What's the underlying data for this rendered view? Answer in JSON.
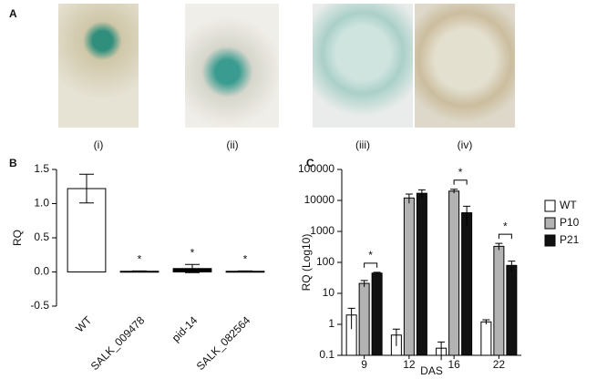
{
  "panels": [
    "A",
    "B",
    "C"
  ],
  "photo_captions": [
    "(i)",
    "(ii)",
    "(iii)",
    "(iv)"
  ],
  "chart_data": [
    {
      "type": "bar",
      "ylabel": "RQ",
      "categories": [
        "WT",
        "SALK_009478",
        "pid-14",
        "SALK_082564"
      ],
      "values": [
        1.22,
        0.01,
        0.05,
        0.01
      ],
      "errors": [
        0.21,
        0.005,
        0.06,
        0.005
      ],
      "colors": [
        "#ffffff",
        "#000000",
        "#000000",
        "#000000"
      ],
      "ylim": [
        -0.5,
        1.5
      ],
      "yticks": [
        {
          "value": -0.5,
          "label": "-0.5"
        },
        {
          "value": 0,
          "label": "0.0"
        },
        {
          "value": 0.5,
          "label": "0.5"
        },
        {
          "value": 1,
          "label": "1.0"
        },
        {
          "value": 1.5,
          "label": "1.5"
        }
      ],
      "annotations": [
        {
          "text": "*",
          "category": "SALK_009478"
        },
        {
          "text": "*",
          "category": "pid-14"
        },
        {
          "text": "*",
          "category": "SALK_082564"
        }
      ]
    },
    {
      "type": "grouped_bar",
      "ylabel": "RQ (Log10)",
      "xlabel": "DAS",
      "log_y": true,
      "legend": "right",
      "categories": [
        "9",
        "12",
        "16",
        "22"
      ],
      "series": [
        {
          "name": "WT",
          "color": "#ffffff",
          "values": [
            2,
            0.45,
            0.17,
            1.2
          ],
          "errors": [
            1.3,
            0.25,
            0.1,
            0.2
          ]
        },
        {
          "name": "P10",
          "color": "#b3b3b3",
          "values": [
            21,
            12000,
            20000,
            330
          ],
          "errors": [
            5,
            4000,
            3000,
            80
          ]
        },
        {
          "name": "P21",
          "color": "#111111",
          "values": [
            45,
            17000,
            4000,
            80
          ],
          "errors": [
            3,
            5000,
            2500,
            30
          ]
        }
      ],
      "ylim": [
        0.1,
        100000
      ],
      "yticks": [
        0.1,
        1,
        10,
        100,
        1000,
        10000,
        100000
      ],
      "annotations": [
        {
          "text": "*",
          "category": "9",
          "series": [
            "P10",
            "P21"
          ]
        },
        {
          "text": "*",
          "category": "16",
          "series": [
            "P10",
            "P21"
          ]
        },
        {
          "text": "*",
          "category": "22",
          "series": [
            "P10",
            "P21"
          ]
        }
      ]
    }
  ]
}
